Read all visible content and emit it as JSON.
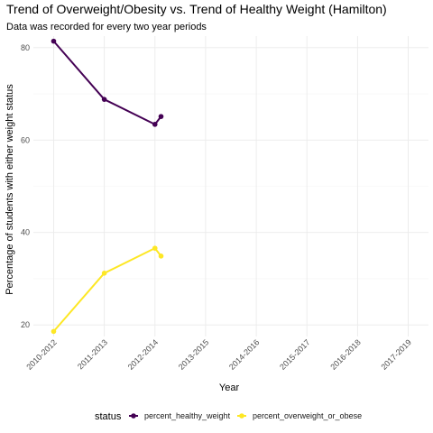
{
  "chart_data": {
    "type": "line",
    "title": "Trend of Overweight/Obesity vs. Trend of Healthy Weight (Hamilton)",
    "subtitle": "Data was recorded for every two year periods",
    "xlabel": "Year",
    "ylabel": "Percentage of students with either weight status",
    "categories": [
      "2010-2012",
      "2011-2013",
      "2012-2014",
      "2013-2015",
      "2014-2016",
      "2015-2017",
      "2016-2018",
      "2017-2019"
    ],
    "y_ticks": [
      20,
      40,
      60,
      80
    ],
    "ylim": [
      17.5,
      82.5
    ],
    "grid": true,
    "legend": {
      "title": "status",
      "position": "bottom"
    },
    "series": [
      {
        "name": "percent_healthy_weight",
        "color": "#440154",
        "x": [
          1,
          2,
          3,
          3.12
        ],
        "values": [
          81.4,
          68.8,
          63.4,
          65.1
        ]
      },
      {
        "name": "percent_overweight_or_obese",
        "color": "#fde725",
        "x": [
          1,
          2,
          3,
          3.12
        ],
        "values": [
          18.6,
          31.2,
          36.6,
          34.9
        ]
      }
    ]
  }
}
